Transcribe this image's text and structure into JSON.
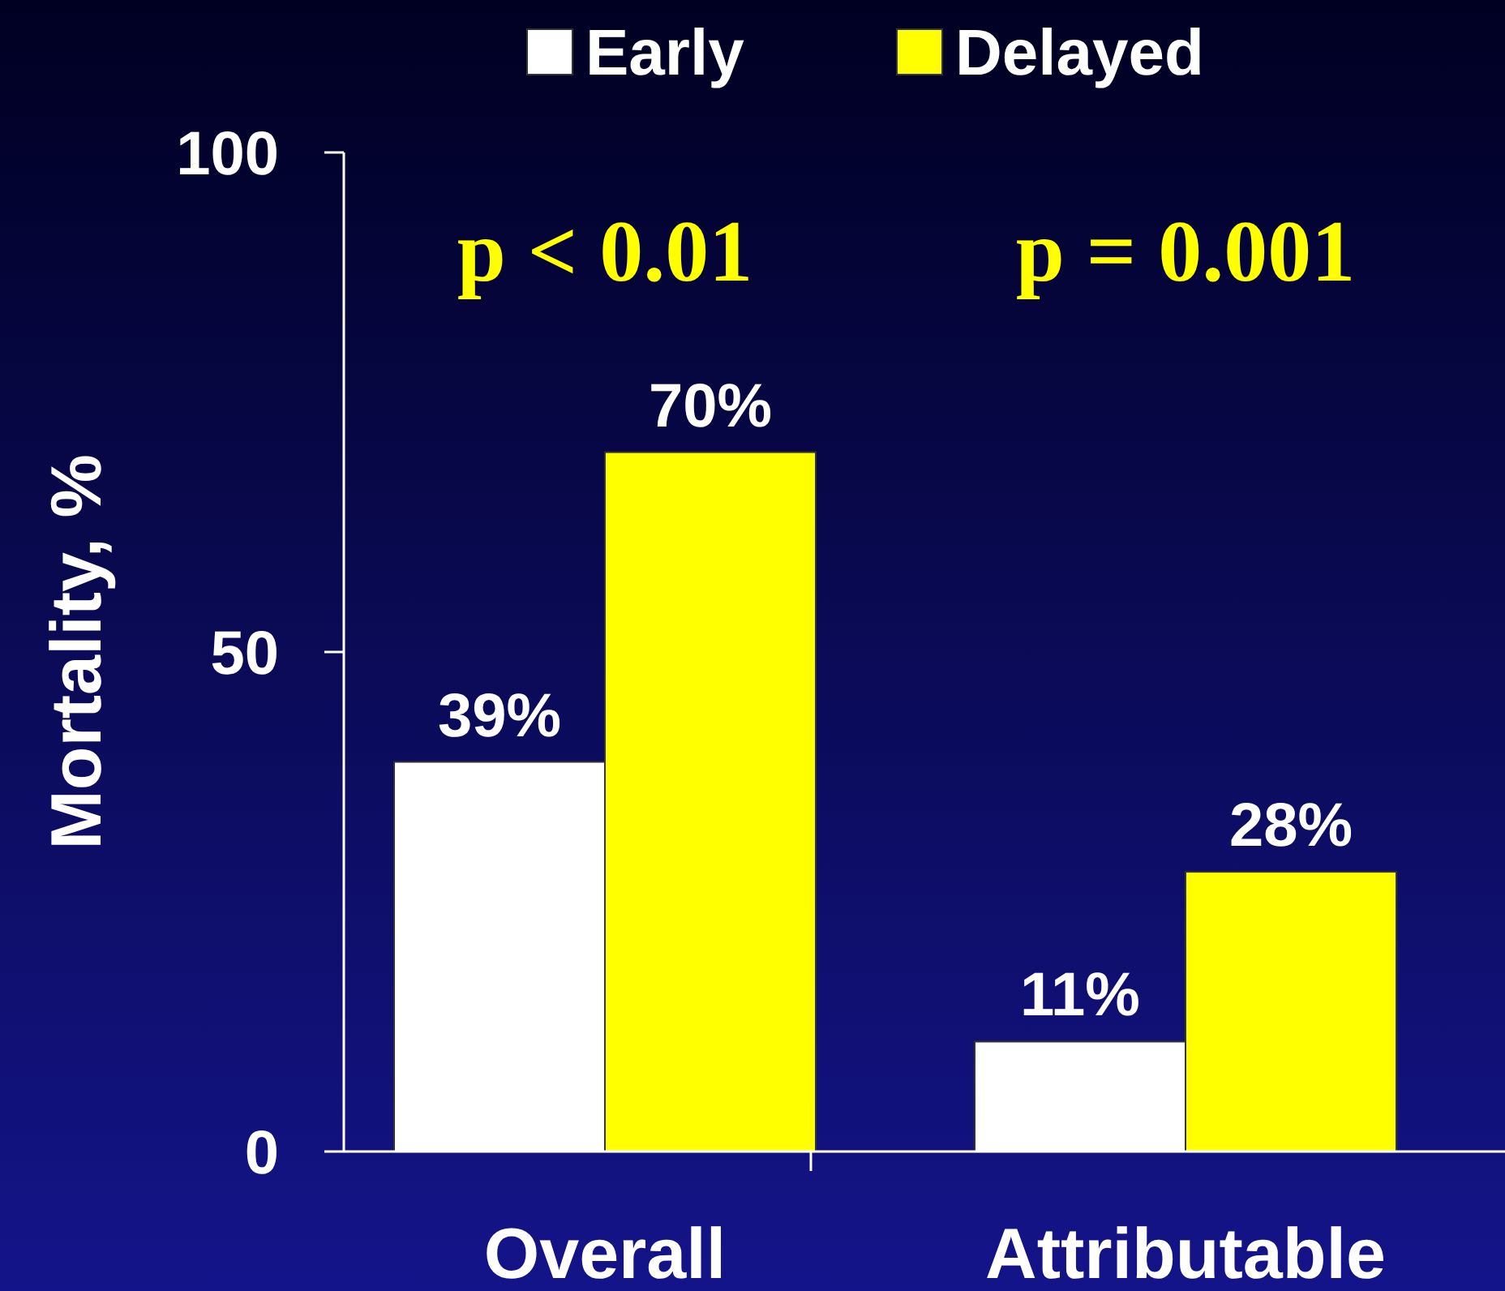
{
  "chart_data": {
    "type": "bar",
    "ylabel": "Mortality, %",
    "categories": [
      "Overall",
      "Attributable"
    ],
    "series": [
      {
        "name": "Early",
        "color": "#ffffff",
        "values": [
          39,
          11
        ],
        "value_labels": [
          "39%",
          "11%"
        ]
      },
      {
        "name": "Delayed",
        "color": "#ffff00",
        "values": [
          70,
          28
        ],
        "value_labels": [
          "70%",
          "28%"
        ]
      }
    ],
    "ylim": [
      0,
      100
    ],
    "yticks": [
      0,
      50,
      100
    ],
    "grid": false,
    "legend": "top",
    "annotations": [
      "p < 0.01",
      "p = 0.001"
    ]
  }
}
